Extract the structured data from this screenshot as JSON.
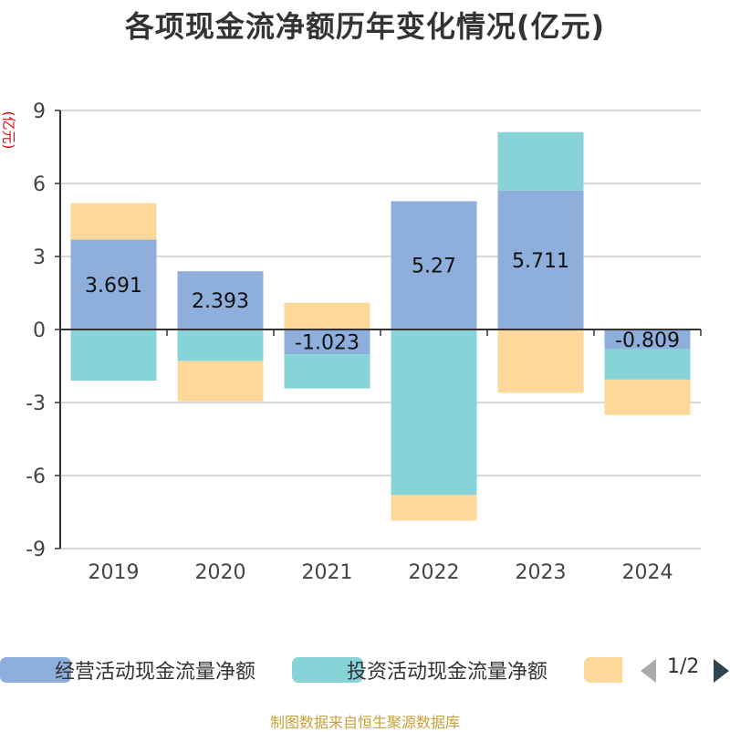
{
  "title": "各项现金流净额历年变化情况(亿元)",
  "unit_label": "(亿元)",
  "source": "制图数据来自恒生聚源数据库",
  "legend": {
    "items": [
      {
        "label": "经营活动现金流量净额",
        "color": "#8eaedb"
      },
      {
        "label": "投资活动现金流量净额",
        "color": "#86d4d8"
      },
      {
        "label": "",
        "color": "#fdd899"
      }
    ],
    "pager_text": "1/2"
  },
  "chart_data": {
    "type": "bar",
    "stacked": true,
    "categories": [
      "2019",
      "2020",
      "2021",
      "2022",
      "2023",
      "2024"
    ],
    "ylim": [
      -9,
      9
    ],
    "yticks": [
      9,
      6,
      3,
      0,
      -3,
      -6,
      -9
    ],
    "grid": true,
    "legend_position": "bottom",
    "series": [
      {
        "name": "经营活动现金流量净额",
        "color": "#8eaedb",
        "values": [
          3.691,
          2.393,
          -1.023,
          5.27,
          5.711,
          -0.809
        ],
        "labels": [
          "3.691",
          "2.393",
          "-1.023",
          "5.27",
          "5.711",
          "-0.809"
        ]
      },
      {
        "name": "投资活动现金流量净额",
        "color": "#86d4d8",
        "values": [
          -2.1,
          -1.3,
          -1.4,
          -6.8,
          2.4,
          -1.25
        ]
      },
      {
        "color": "#fdd899",
        "values": [
          1.5,
          -1.65,
          1.1,
          -1.05,
          -2.6,
          -1.45
        ]
      }
    ]
  }
}
